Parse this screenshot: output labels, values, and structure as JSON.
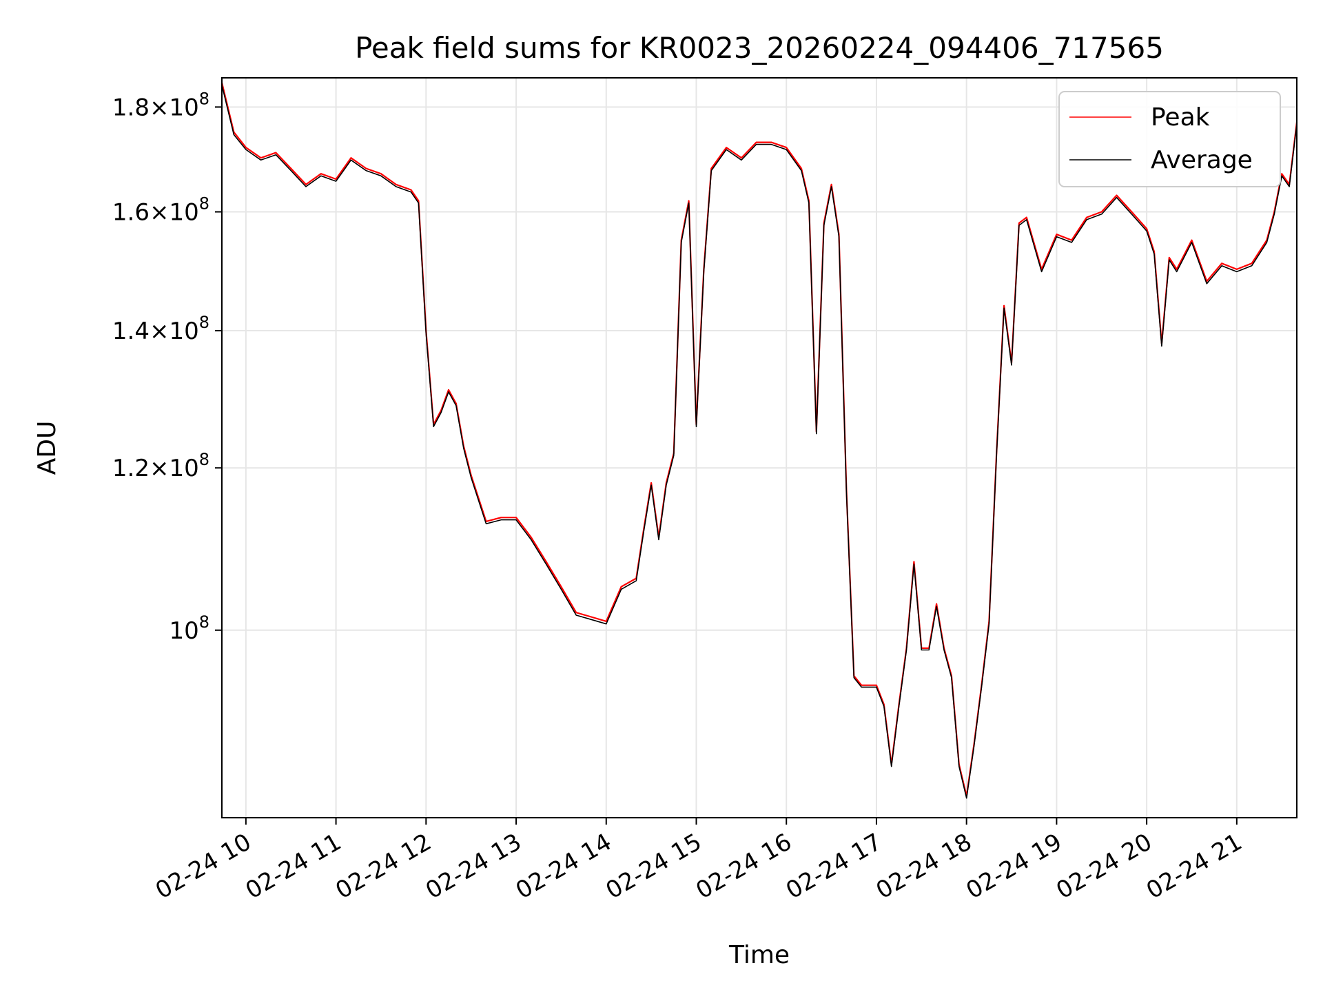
{
  "chart_data": {
    "type": "line",
    "title": "Peak field sums for KR0023_20260224_094406_717565",
    "xlabel": "Time",
    "ylabel": "ADU",
    "x_axis": {
      "kind": "time",
      "range": [
        "2026-02-24 09:44",
        "2026-02-24 21:40"
      ],
      "tick_labels": [
        "02-24 10",
        "02-24 11",
        "02-24 12",
        "02-24 13",
        "02-24 14",
        "02-24 15",
        "02-24 16",
        "02-24 17",
        "02-24 18",
        "02-24 19",
        "02-24 20",
        "02-24 21"
      ],
      "tick_times": [
        "2026-02-24 10:00",
        "2026-02-24 11:00",
        "2026-02-24 12:00",
        "2026-02-24 13:00",
        "2026-02-24 14:00",
        "2026-02-24 15:00",
        "2026-02-24 16:00",
        "2026-02-24 17:00",
        "2026-02-24 18:00",
        "2026-02-24 19:00",
        "2026-02-24 20:00",
        "2026-02-24 21:00"
      ],
      "tick_rotation_deg": 30
    },
    "y_axis": {
      "scale": "log",
      "range": [
        81000000,
        186000000
      ],
      "ticks": [
        {
          "value": 100000000,
          "mantissa": "",
          "exp": "8"
        },
        {
          "value": 120000000,
          "mantissa": "1.2",
          "exp": "8"
        },
        {
          "value": 140000000,
          "mantissa": "1.4",
          "exp": "8"
        },
        {
          "value": 160000000,
          "mantissa": "1.6",
          "exp": "8"
        },
        {
          "value": 180000000,
          "mantissa": "1.8",
          "exp": "8"
        }
      ]
    },
    "grid": true,
    "legend": {
      "placement": "upper-right"
    },
    "series": [
      {
        "name": "Peak",
        "color": "#ff0000",
        "x": [
          "2026-02-24 09:44",
          "2026-02-24 09:52",
          "2026-02-24 10:00",
          "2026-02-24 10:10",
          "2026-02-24 10:20",
          "2026-02-24 10:30",
          "2026-02-24 10:40",
          "2026-02-24 10:50",
          "2026-02-24 11:00",
          "2026-02-24 11:10",
          "2026-02-24 11:20",
          "2026-02-24 11:30",
          "2026-02-24 11:40",
          "2026-02-24 11:50",
          "2026-02-24 11:55",
          "2026-02-24 12:00",
          "2026-02-24 12:05",
          "2026-02-24 12:10",
          "2026-02-24 12:15",
          "2026-02-24 12:20",
          "2026-02-24 12:25",
          "2026-02-24 12:30",
          "2026-02-24 12:40",
          "2026-02-24 12:50",
          "2026-02-24 13:00",
          "2026-02-24 13:10",
          "2026-02-24 13:20",
          "2026-02-24 13:30",
          "2026-02-24 13:40",
          "2026-02-24 13:50",
          "2026-02-24 14:00",
          "2026-02-24 14:10",
          "2026-02-24 14:20",
          "2026-02-24 14:25",
          "2026-02-24 14:30",
          "2026-02-24 14:35",
          "2026-02-24 14:40",
          "2026-02-24 14:45",
          "2026-02-24 14:50",
          "2026-02-24 14:55",
          "2026-02-24 15:00",
          "2026-02-24 15:05",
          "2026-02-24 15:10",
          "2026-02-24 15:20",
          "2026-02-24 15:30",
          "2026-02-24 15:40",
          "2026-02-24 15:50",
          "2026-02-24 16:00",
          "2026-02-24 16:10",
          "2026-02-24 16:15",
          "2026-02-24 16:20",
          "2026-02-24 16:25",
          "2026-02-24 16:30",
          "2026-02-24 16:35",
          "2026-02-24 16:40",
          "2026-02-24 16:45",
          "2026-02-24 16:50",
          "2026-02-24 17:00",
          "2026-02-24 17:05",
          "2026-02-24 17:10",
          "2026-02-24 17:15",
          "2026-02-24 17:20",
          "2026-02-24 17:25",
          "2026-02-24 17:30",
          "2026-02-24 17:35",
          "2026-02-24 17:40",
          "2026-02-24 17:45",
          "2026-02-24 17:50",
          "2026-02-24 17:55",
          "2026-02-24 18:00",
          "2026-02-24 18:05",
          "2026-02-24 18:10",
          "2026-02-24 18:15",
          "2026-02-24 18:20",
          "2026-02-24 18:25",
          "2026-02-24 18:30",
          "2026-02-24 18:35",
          "2026-02-24 18:40",
          "2026-02-24 18:50",
          "2026-02-24 19:00",
          "2026-02-24 19:10",
          "2026-02-24 19:20",
          "2026-02-24 19:30",
          "2026-02-24 19:40",
          "2026-02-24 19:50",
          "2026-02-24 20:00",
          "2026-02-24 20:05",
          "2026-02-24 20:10",
          "2026-02-24 20:15",
          "2026-02-24 20:20",
          "2026-02-24 20:30",
          "2026-02-24 20:40",
          "2026-02-24 20:50",
          "2026-02-24 21:00",
          "2026-02-24 21:10",
          "2026-02-24 21:20",
          "2026-02-24 21:25",
          "2026-02-24 21:30",
          "2026-02-24 21:35",
          "2026-02-24 21:40"
        ],
        "y": [
          185000000,
          175000000,
          172000000,
          170000000,
          171000000,
          168000000,
          165000000,
          167000000,
          166000000,
          170000000,
          168000000,
          167000000,
          165000000,
          164000000,
          162000000,
          140000000,
          126000000,
          128000000,
          131000000,
          129000000,
          123000000,
          119000000,
          113000000,
          113500000,
          113500000,
          111000000,
          108000000,
          105000000,
          102000000,
          101500000,
          101000000,
          105000000,
          106000000,
          112000000,
          118000000,
          111000000,
          118000000,
          122000000,
          155000000,
          162000000,
          126000000,
          150000000,
          168000000,
          172000000,
          170000000,
          173000000,
          173000000,
          172000000,
          168000000,
          162000000,
          125000000,
          158000000,
          165000000,
          156000000,
          117000000,
          95000000,
          94000000,
          94000000,
          92000000,
          86000000,
          92000000,
          98000000,
          108000000,
          98000000,
          98000000,
          103000000,
          98000000,
          95000000,
          86000000,
          83000000,
          88000000,
          94000000,
          101000000,
          122000000,
          144000000,
          135000000,
          158000000,
          159000000,
          150000000,
          156000000,
          155000000,
          159000000,
          160000000,
          163000000,
          160000000,
          157000000,
          153000000,
          138000000,
          152000000,
          150000000,
          155000000,
          148000000,
          151000000,
          150000000,
          151000000,
          155000000,
          160000000,
          167000000,
          165000000,
          177000000
        ]
      },
      {
        "name": "Average",
        "color": "#000000",
        "x": [
          "2026-02-24 09:44",
          "2026-02-24 09:52",
          "2026-02-24 10:00",
          "2026-02-24 10:10",
          "2026-02-24 10:20",
          "2026-02-24 10:30",
          "2026-02-24 10:40",
          "2026-02-24 10:50",
          "2026-02-24 11:00",
          "2026-02-24 11:10",
          "2026-02-24 11:20",
          "2026-02-24 11:30",
          "2026-02-24 11:40",
          "2026-02-24 11:50",
          "2026-02-24 11:55",
          "2026-02-24 12:00",
          "2026-02-24 12:05",
          "2026-02-24 12:10",
          "2026-02-24 12:15",
          "2026-02-24 12:20",
          "2026-02-24 12:25",
          "2026-02-24 12:30",
          "2026-02-24 12:40",
          "2026-02-24 12:50",
          "2026-02-24 13:00",
          "2026-02-24 13:10",
          "2026-02-24 13:20",
          "2026-02-24 13:30",
          "2026-02-24 13:40",
          "2026-02-24 13:50",
          "2026-02-24 14:00",
          "2026-02-24 14:10",
          "2026-02-24 14:20",
          "2026-02-24 14:25",
          "2026-02-24 14:30",
          "2026-02-24 14:35",
          "2026-02-24 14:40",
          "2026-02-24 14:45",
          "2026-02-24 14:50",
          "2026-02-24 14:55",
          "2026-02-24 15:00",
          "2026-02-24 15:05",
          "2026-02-24 15:10",
          "2026-02-24 15:20",
          "2026-02-24 15:30",
          "2026-02-24 15:40",
          "2026-02-24 15:50",
          "2026-02-24 16:00",
          "2026-02-24 16:10",
          "2026-02-24 16:15",
          "2026-02-24 16:20",
          "2026-02-24 16:25",
          "2026-02-24 16:30",
          "2026-02-24 16:35",
          "2026-02-24 16:40",
          "2026-02-24 16:45",
          "2026-02-24 16:50",
          "2026-02-24 17:00",
          "2026-02-24 17:05",
          "2026-02-24 17:10",
          "2026-02-24 17:15",
          "2026-02-24 17:20",
          "2026-02-24 17:25",
          "2026-02-24 17:30",
          "2026-02-24 17:35",
          "2026-02-24 17:40",
          "2026-02-24 17:45",
          "2026-02-24 17:50",
          "2026-02-24 17:55",
          "2026-02-24 18:00",
          "2026-02-24 18:05",
          "2026-02-24 18:10",
          "2026-02-24 18:15",
          "2026-02-24 18:20",
          "2026-02-24 18:25",
          "2026-02-24 18:30",
          "2026-02-24 18:35",
          "2026-02-24 18:40",
          "2026-02-24 18:50",
          "2026-02-24 19:00",
          "2026-02-24 19:10",
          "2026-02-24 19:20",
          "2026-02-24 19:30",
          "2026-02-24 19:40",
          "2026-02-24 19:50",
          "2026-02-24 20:00",
          "2026-02-24 20:05",
          "2026-02-24 20:10",
          "2026-02-24 20:15",
          "2026-02-24 20:20",
          "2026-02-24 20:30",
          "2026-02-24 20:40",
          "2026-02-24 20:50",
          "2026-02-24 21:00",
          "2026-02-24 21:10",
          "2026-02-24 21:20",
          "2026-02-24 21:25",
          "2026-02-24 21:30",
          "2026-02-24 21:35",
          "2026-02-24 21:40"
        ],
        "y": [
          184500000,
          174500000,
          171600000,
          169600000,
          170600000,
          167600000,
          164600000,
          166600000,
          165600000,
          169600000,
          167600000,
          166600000,
          164600000,
          163600000,
          161600000,
          139600000,
          125700000,
          127700000,
          130700000,
          128700000,
          122700000,
          118700000,
          112700000,
          113200000,
          113200000,
          110700000,
          107700000,
          104700000,
          101700000,
          101200000,
          100700000,
          104700000,
          105700000,
          111700000,
          117700000,
          110700000,
          117700000,
          121700000,
          154600000,
          161600000,
          125700000,
          149600000,
          167600000,
          171600000,
          169600000,
          172600000,
          172600000,
          171600000,
          167600000,
          161600000,
          124700000,
          157600000,
          164600000,
          155600000,
          116700000,
          94800000,
          93800000,
          93800000,
          91800000,
          85800000,
          91800000,
          97800000,
          107700000,
          97800000,
          97800000,
          102700000,
          97800000,
          94800000,
          85800000,
          82800000,
          87800000,
          93800000,
          100700000,
          121700000,
          143600000,
          134700000,
          157600000,
          158600000,
          149600000,
          155600000,
          154600000,
          158600000,
          159600000,
          162600000,
          159600000,
          156600000,
          152600000,
          137600000,
          151600000,
          149600000,
          154600000,
          147600000,
          150600000,
          149600000,
          150600000,
          154600000,
          159600000,
          166600000,
          164600000,
          176600000
        ]
      }
    ]
  }
}
